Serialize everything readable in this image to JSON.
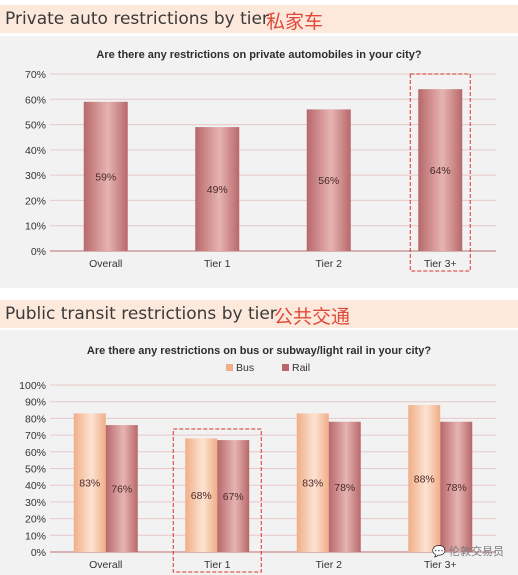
{
  "sections": [
    {
      "header_en": "Private auto restrictions by tier",
      "header_cn": "私家车"
    },
    {
      "header_en": "Public transit restrictions by tier",
      "header_cn": "公共交通"
    }
  ],
  "watermark": "伦敦交易员",
  "colors": {
    "rail_dark": "#b8686a",
    "rail_light": "#e6b4b2",
    "bus_dark": "#f0ae88",
    "bus_light": "#fde3d2",
    "highlight": "#d9332c",
    "axis": "#c48a8a",
    "grid": "#e8c8c8"
  },
  "chart_data": [
    {
      "type": "bar",
      "title": "Are there any restrictions on private automobiles in your city?",
      "categories": [
        "Overall",
        "Tier 1",
        "Tier 2",
        "Tier 3+"
      ],
      "series": [
        {
          "values": [
            59,
            49,
            56,
            64
          ],
          "labels": [
            "59%",
            "49%",
            "56%",
            "64%"
          ]
        }
      ],
      "ylim": [
        0,
        70
      ],
      "yticks": [
        "0%",
        "10%",
        "20%",
        "30%",
        "40%",
        "50%",
        "60%",
        "70%"
      ],
      "highlight": "Tier 3+",
      "grid": true
    },
    {
      "type": "bar",
      "title": "Are there any restrictions on bus or subway/light rail in your city?",
      "categories": [
        "Overall",
        "Tier 1",
        "Tier 2",
        "Tier 3+"
      ],
      "series": [
        {
          "name": "Bus",
          "values": [
            83,
            68,
            83,
            88
          ],
          "labels": [
            "83%",
            "68%",
            "83%",
            "88%"
          ]
        },
        {
          "name": "Rail",
          "values": [
            76,
            67,
            78,
            78
          ],
          "labels": [
            "76%",
            "67%",
            "78%",
            "78%"
          ]
        }
      ],
      "ylim": [
        0,
        100
      ],
      "yticks": [
        "0%",
        "10%",
        "20%",
        "30%",
        "40%",
        "50%",
        "60%",
        "70%",
        "80%",
        "90%",
        "100%"
      ],
      "legend": "top-center",
      "highlight": "Tier 1",
      "grid": true
    }
  ]
}
